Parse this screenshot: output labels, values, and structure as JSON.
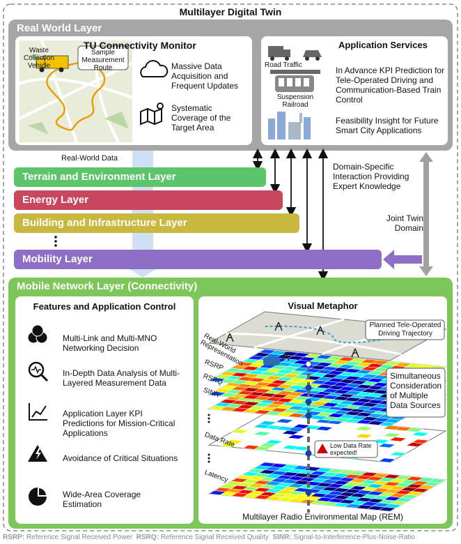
{
  "title": "Multilayer Digital Twin",
  "real_world_layer": {
    "title": "Real World Layer",
    "monitor": {
      "title": "TU Connectivity Monitor",
      "map_labels": [
        "Waste Collection Vehicle",
        "Sample Measurement Route"
      ],
      "features": [
        "Massive Data Acquisition and Frequent Updates",
        "Systematic Coverage of the Target Area"
      ]
    },
    "services": {
      "title": "Application Services",
      "icon_labels": [
        "Road Traffic",
        "Suspension Railroad"
      ],
      "items": [
        "In Advance KPI Prediction for Tele-Operated Driving and Communication-Based Train Control",
        "Feasibility Insight for Future Smart City Applications"
      ]
    }
  },
  "arrow_labels": [
    "Real-World Data",
    "Domain-Specific Interaction Providing Expert Knowledge",
    "Joint Twin Domain"
  ],
  "layers": [
    "Terrain and Environment Layer",
    "Energy Layer",
    "Building and Infrastructure Layer",
    "Mobility Layer"
  ],
  "mobile_network_layer": {
    "title": "Mobile Network Layer (Connectivity)",
    "features": {
      "title": "Features and Application Control",
      "items": [
        "Multi-Link and Multi-MNO Networking Decision",
        "In-Depth Data Analysis of Multi-Layered Measurement Data",
        "Application Layer KPI Predictions for Mission-Critical Applications",
        "Avoidance of Critical Situations",
        "Wide-Area Coverage Estimation"
      ]
    },
    "visual": {
      "title": "Visual Metaphor",
      "trajectory_label": "Planned Tele-Operated Driving Trajectory",
      "layer_labels": [
        "Real-World Representation",
        "RSRP",
        "RSRQ",
        "SINR",
        "Data Rate",
        "Latency"
      ],
      "sources_label": "Simultaneous Consideration of Multiple Data Sources",
      "warning": "Low Data Rate expected!",
      "caption": "Multilayer Radio Environmental Map (REM)"
    }
  },
  "footer": [
    {
      "term": "RSRP:",
      "definition": "Reference Signal Received Power"
    },
    {
      "term": "RSRQ:",
      "definition": "Reference Signal Received Quality"
    },
    {
      "term": "SINR:",
      "definition": "Signal-to-Interference-Plus-Noise-Ratio"
    }
  ]
}
